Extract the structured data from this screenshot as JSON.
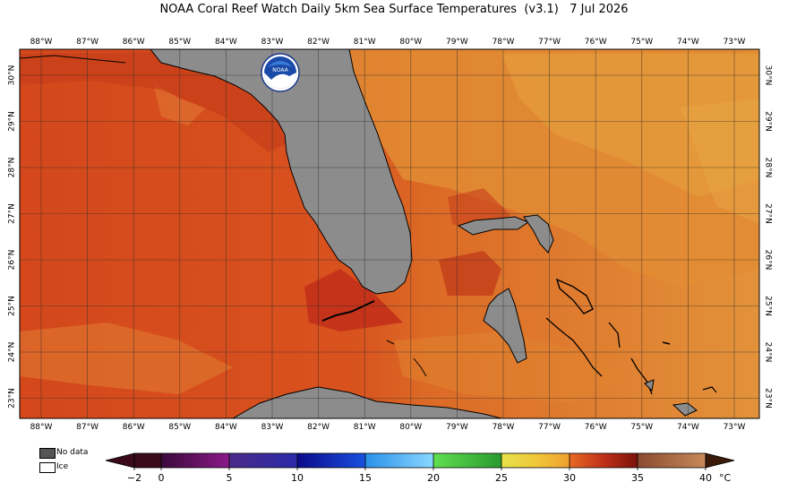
{
  "title": "NOAA Coral Reef Watch Daily 5km Sea Surface Temperatures  (v3.1)   7 Jul 2026",
  "lon_labels": [
    "88°W",
    "87°W",
    "86°W",
    "85°W",
    "84°W",
    "83°W",
    "82°W",
    "81°W",
    "80°W",
    "79°W",
    "78°W",
    "77°W",
    "76°W",
    "75°W",
    "74°W",
    "73°W"
  ],
  "lat_labels": [
    "30°N",
    "29°N",
    "28°N",
    "27°N",
    "26°N",
    "25°N",
    "24°N",
    "23°N"
  ],
  "legend": {
    "no_data": "No data",
    "ice": "Ice",
    "no_data_color": "#555555",
    "ice_color": "#ffffff"
  },
  "logo": {
    "text": "NOAA"
  },
  "colorbar": {
    "unit": "°C",
    "tick_labels": [
      "−2",
      "0",
      "5",
      "10",
      "15",
      "20",
      "25",
      "30",
      "35",
      "40"
    ],
    "tick_values": [
      -2,
      0,
      5,
      10,
      15,
      20,
      25,
      30,
      35,
      40
    ],
    "range": [
      -2,
      40
    ],
    "colors": {
      "neg": "#3a0a1a",
      "0_5": [
        "#3b0f3c",
        "#7a1a7e"
      ],
      "5_10": [
        "#3a2a8a",
        "#1a1aa0"
      ],
      "10_15": [
        "#0a10c8",
        "#2a6ae6"
      ],
      "15_20": [
        "#3aa0f0",
        "#7ad0ff"
      ],
      "20_25": [
        "#4ad040",
        "#2aa030"
      ],
      "25_30": [
        "#e6e040",
        "#f0b030"
      ],
      "30_35": [
        "#e06020",
        "#8a1408"
      ],
      "35_40": [
        "#9a5a3a",
        "#c88a5a"
      ],
      "max": "#3a1a0a"
    }
  },
  "map_colors": {
    "land": "#8c8c8c",
    "sea_warm": "#d8521e",
    "sea_hot": "#c83a18",
    "sea_orange": "#e08a30",
    "sea_light": "#e59a36",
    "coast": "#000000",
    "grid": "#2a2a2a"
  }
}
